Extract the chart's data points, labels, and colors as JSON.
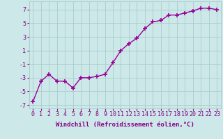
{
  "x": [
    0,
    1,
    2,
    3,
    4,
    5,
    6,
    7,
    8,
    9,
    10,
    11,
    12,
    13,
    14,
    15,
    16,
    17,
    18,
    19,
    20,
    21,
    22,
    23
  ],
  "y": [
    -6.5,
    -3.5,
    -2.5,
    -3.5,
    -3.5,
    -4.5,
    -3.0,
    -3.0,
    -2.8,
    -2.5,
    -0.8,
    1.0,
    2.0,
    2.8,
    4.2,
    5.2,
    5.4,
    6.2,
    6.2,
    6.5,
    6.8,
    7.2,
    7.2,
    7.0
  ],
  "line_color": "#990099",
  "marker": "+",
  "marker_size": 4,
  "marker_lw": 1.2,
  "line_width": 1.0,
  "bg_color": "#cce8e8",
  "grid_color": "#aacccc",
  "xlabel": "Windchill (Refroidissement éolien,°C)",
  "ylabel_ticks": [
    -7,
    -5,
    -3,
    -1,
    1,
    3,
    5,
    7
  ],
  "xlim": [
    -0.5,
    23.5
  ],
  "ylim": [
    -7.5,
    8.2
  ],
  "xlabel_fontsize": 6.5,
  "tick_fontsize": 6.0,
  "label_color": "#880088"
}
